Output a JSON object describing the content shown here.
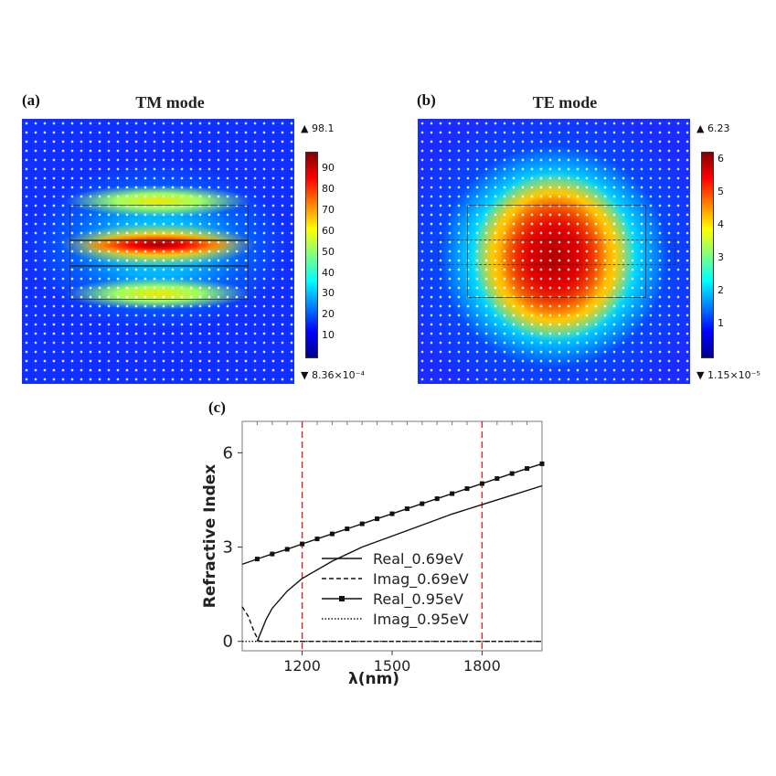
{
  "figure": {
    "panels": [
      {
        "label": "(a)",
        "title": "TM mode",
        "colorbar": {
          "max_label": "98.1",
          "min_label": "8.36×10⁻⁴",
          "ticks": [
            "90",
            "80",
            "70",
            "60",
            "50",
            "40",
            "30",
            "20",
            "10"
          ],
          "tick_values": [
            90,
            80,
            70,
            60,
            50,
            40,
            30,
            20,
            10
          ],
          "vmax": 98.1
        }
      },
      {
        "label": "(b)",
        "title": "TE mode",
        "colorbar": {
          "max_label": "6.23",
          "min_label": "1.15×10⁻⁵",
          "ticks": [
            "6",
            "5",
            "4",
            "3",
            "2",
            "1"
          ],
          "tick_values": [
            6,
            5,
            4,
            3,
            2,
            1
          ],
          "vmax": 6.23
        }
      }
    ],
    "panel_c_label": "(c)"
  },
  "colors": {
    "jet": [
      "#00008f",
      "#0000ff",
      "#0080ff",
      "#00ffff",
      "#80ff80",
      "#ffff00",
      "#ff8000",
      "#ff0000",
      "#800000"
    ],
    "marker_line": "#d62728"
  },
  "chart_data": {
    "type": "line",
    "xlabel": "λ(nm)",
    "ylabel": "Refractive Index",
    "xlim": [
      1000,
      2000
    ],
    "ylim": [
      -0.3,
      7
    ],
    "xticks": [
      1200,
      1500,
      1800
    ],
    "xtick_labels": [
      "1200",
      "1500",
      "1800"
    ],
    "yticks": [
      0,
      3,
      6
    ],
    "ytick_labels": [
      "0",
      "3",
      "6"
    ],
    "vlines": [
      1200,
      1800
    ],
    "legend_position": "center-right",
    "series": [
      {
        "name": "Real_0.69eV",
        "style": "solid",
        "x": [
          1050,
          1080,
          1100,
          1150,
          1200,
          1300,
          1400,
          1500,
          1600,
          1700,
          1800,
          1900,
          2000
        ],
        "values": [
          0.0,
          0.7,
          1.05,
          1.6,
          2.0,
          2.55,
          3.0,
          3.35,
          3.7,
          4.05,
          4.35,
          4.65,
          4.95
        ]
      },
      {
        "name": "Imag_0.69eV",
        "style": "dashed",
        "x": [
          1000,
          1020,
          1040,
          1055,
          1060,
          1200,
          1500,
          1800,
          2000
        ],
        "values": [
          1.1,
          0.8,
          0.3,
          0.02,
          0.0,
          0.0,
          0.0,
          0.0,
          0.0
        ]
      },
      {
        "name": "Real_0.95eV",
        "style": "solid-square",
        "x": [
          1000,
          1050,
          1100,
          1150,
          1200,
          1250,
          1300,
          1350,
          1400,
          1450,
          1500,
          1550,
          1600,
          1650,
          1700,
          1750,
          1800,
          1850,
          1900,
          1950,
          2000
        ],
        "values": [
          2.45,
          2.62,
          2.78,
          2.93,
          3.1,
          3.26,
          3.42,
          3.58,
          3.74,
          3.9,
          4.06,
          4.22,
          4.38,
          4.54,
          4.7,
          4.86,
          5.02,
          5.18,
          5.34,
          5.5,
          5.65
        ]
      },
      {
        "name": "Imag_0.95eV",
        "style": "dotted",
        "x": [
          1000,
          1200,
          1500,
          1800,
          2000
        ],
        "values": [
          0.0,
          0.0,
          0.0,
          0.0,
          0.0
        ]
      }
    ]
  }
}
